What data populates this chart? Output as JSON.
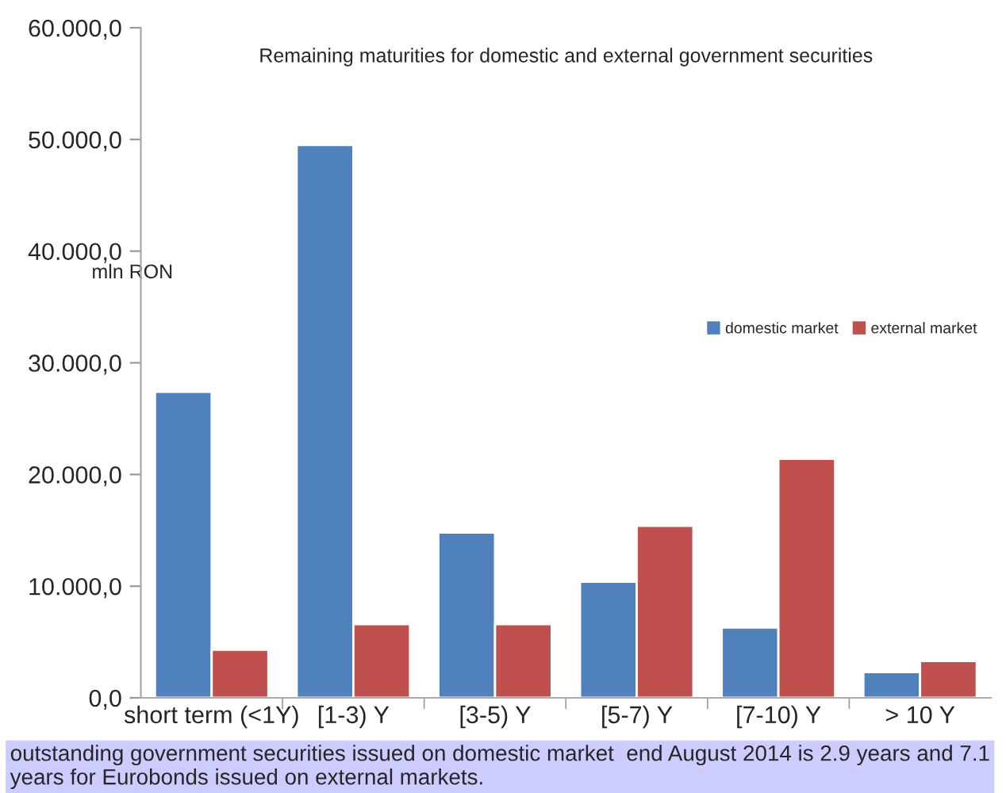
{
  "chart_data": {
    "type": "bar",
    "title": "Remaining maturities for domestic and external government securities",
    "ylabel": "mln RON",
    "categories": [
      "short term (<1Y)",
      "[1-3) Y",
      "[3-5) Y",
      "[5-7) Y",
      "[7-10) Y",
      "> 10 Y"
    ],
    "series": [
      {
        "name": "domestic market",
        "color": "#4f81bd",
        "values": [
          27400,
          49500,
          14800,
          10400,
          6300,
          2300
        ]
      },
      {
        "name": "external market",
        "color": "#c0504d",
        "values": [
          4300,
          6600,
          6600,
          15400,
          21400,
          3300
        ]
      }
    ],
    "ylim": [
      0,
      60000
    ],
    "yticks": [
      {
        "value": 0,
        "label": "0,0"
      },
      {
        "value": 10000,
        "label": "10.000,0"
      },
      {
        "value": 20000,
        "label": "20.000,0"
      },
      {
        "value": 30000,
        "label": "30.000,0"
      },
      {
        "value": 40000,
        "label": "40.000,0"
      },
      {
        "value": 50000,
        "label": "50.000,0"
      },
      {
        "value": 60000,
        "label": "60.000,0"
      }
    ],
    "grid": false,
    "legend": "right",
    "annotations": [
      "outstanding government securities issued on domestic market  end August 2014 is 2.9 years and 7.1 years for Eurobonds issued on external markets."
    ]
  }
}
